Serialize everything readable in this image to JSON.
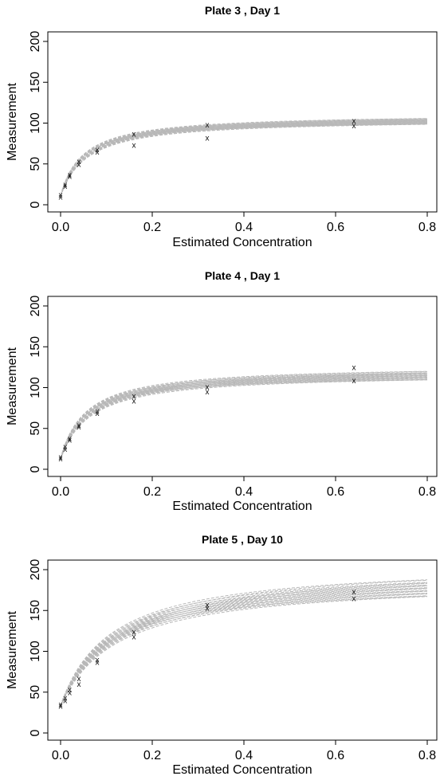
{
  "chart_data": [
    {
      "type": "scatter",
      "title": "Plate 3 , Day 1",
      "xlabel": "Estimated Concentration",
      "ylabel": "Measurement",
      "xlim": [
        0,
        0.8
      ],
      "ylim": [
        0,
        200
      ],
      "xticks": [
        "0.0",
        "0.2",
        "0.4",
        "0.6",
        "0.8"
      ],
      "yticks": [
        "0",
        "50",
        "100",
        "150",
        "200"
      ],
      "marker": "x",
      "points": [
        {
          "x": 0.0,
          "y": 10
        },
        {
          "x": 0.0,
          "y": 12
        },
        {
          "x": 0.01,
          "y": 23
        },
        {
          "x": 0.01,
          "y": 25
        },
        {
          "x": 0.02,
          "y": 35
        },
        {
          "x": 0.02,
          "y": 37
        },
        {
          "x": 0.04,
          "y": 50
        },
        {
          "x": 0.04,
          "y": 53
        },
        {
          "x": 0.08,
          "y": 65
        },
        {
          "x": 0.08,
          "y": 68
        },
        {
          "x": 0.16,
          "y": 73
        },
        {
          "x": 0.16,
          "y": 87
        },
        {
          "x": 0.32,
          "y": 82
        },
        {
          "x": 0.32,
          "y": 98
        },
        {
          "x": 0.64,
          "y": 97
        },
        {
          "x": 0.64,
          "y": 103
        }
      ],
      "fit_curves": {
        "count": 20,
        "ymin_range": [
          10,
          12
        ],
        "ymax_range": [
          104,
          112
        ],
        "ec50_range": [
          0.045,
          0.062
        ]
      }
    },
    {
      "type": "scatter",
      "title": "Plate 4 , Day 1",
      "xlabel": "Estimated Concentration",
      "ylabel": "Measurement",
      "xlim": [
        0,
        0.8
      ],
      "ylim": [
        0,
        200
      ],
      "xticks": [
        "0.0",
        "0.2",
        "0.4",
        "0.6",
        "0.8"
      ],
      "yticks": [
        "0",
        "50",
        "100",
        "150",
        "200"
      ],
      "marker": "x",
      "points": [
        {
          "x": 0.0,
          "y": 13
        },
        {
          "x": 0.0,
          "y": 15
        },
        {
          "x": 0.01,
          "y": 25
        },
        {
          "x": 0.01,
          "y": 28
        },
        {
          "x": 0.02,
          "y": 36
        },
        {
          "x": 0.02,
          "y": 38
        },
        {
          "x": 0.04,
          "y": 52
        },
        {
          "x": 0.04,
          "y": 54
        },
        {
          "x": 0.08,
          "y": 69
        },
        {
          "x": 0.08,
          "y": 71
        },
        {
          "x": 0.16,
          "y": 84
        },
        {
          "x": 0.16,
          "y": 90
        },
        {
          "x": 0.32,
          "y": 95
        },
        {
          "x": 0.32,
          "y": 101
        },
        {
          "x": 0.64,
          "y": 109
        },
        {
          "x": 0.64,
          "y": 125
        }
      ],
      "fit_curves": {
        "count": 20,
        "ymin_range": [
          12,
          14
        ],
        "ymax_range": [
          116,
          128
        ],
        "ec50_range": [
          0.05,
          0.07
        ]
      }
    },
    {
      "type": "scatter",
      "title": "Plate 5 , Day 10",
      "xlabel": "Estimated Concentration",
      "ylabel": "Measurement",
      "xlim": [
        0,
        0.8
      ],
      "ylim": [
        0,
        200
      ],
      "xticks": [
        "0.0",
        "0.2",
        "0.4",
        "0.6",
        "0.8"
      ],
      "yticks": [
        "0",
        "50",
        "100",
        "150",
        "200"
      ],
      "marker": "x",
      "points": [
        {
          "x": 0.0,
          "y": 33
        },
        {
          "x": 0.0,
          "y": 35
        },
        {
          "x": 0.01,
          "y": 40
        },
        {
          "x": 0.01,
          "y": 43
        },
        {
          "x": 0.02,
          "y": 50
        },
        {
          "x": 0.02,
          "y": 53
        },
        {
          "x": 0.04,
          "y": 60
        },
        {
          "x": 0.04,
          "y": 67
        },
        {
          "x": 0.08,
          "y": 87
        },
        {
          "x": 0.08,
          "y": 90
        },
        {
          "x": 0.16,
          "y": 118
        },
        {
          "x": 0.16,
          "y": 124
        },
        {
          "x": 0.32,
          "y": 153
        },
        {
          "x": 0.32,
          "y": 157
        },
        {
          "x": 0.64,
          "y": 165
        },
        {
          "x": 0.64,
          "y": 173
        }
      ],
      "fit_curves": {
        "count": 20,
        "ymin_range": [
          32,
          34
        ],
        "ymax_range": [
          185,
          210
        ],
        "ec50_range": [
          0.1,
          0.13
        ]
      }
    }
  ]
}
